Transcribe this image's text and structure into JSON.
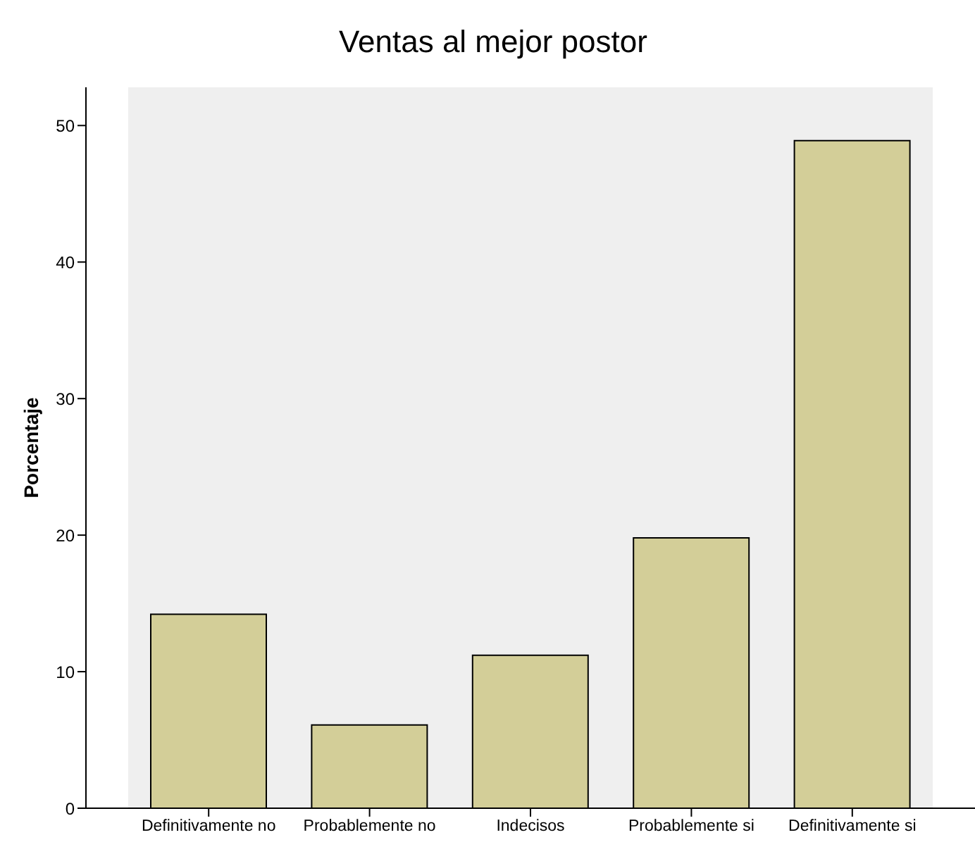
{
  "chart_data": {
    "type": "bar",
    "title": "Ventas al mejor postor",
    "ylabel": "Porcentaje",
    "categories": [
      "Definitivamente no",
      "Probablemente no",
      "Indecisos",
      "Probablemente si",
      "Definitivamente si"
    ],
    "values": [
      14.2,
      6.1,
      11.2,
      19.8,
      48.9
    ],
    "color": "#d3ce98",
    "ylim": [
      0,
      52.8
    ],
    "yticks": [
      0,
      10,
      20,
      30,
      40,
      50
    ],
    "grid": false,
    "legend": false
  }
}
